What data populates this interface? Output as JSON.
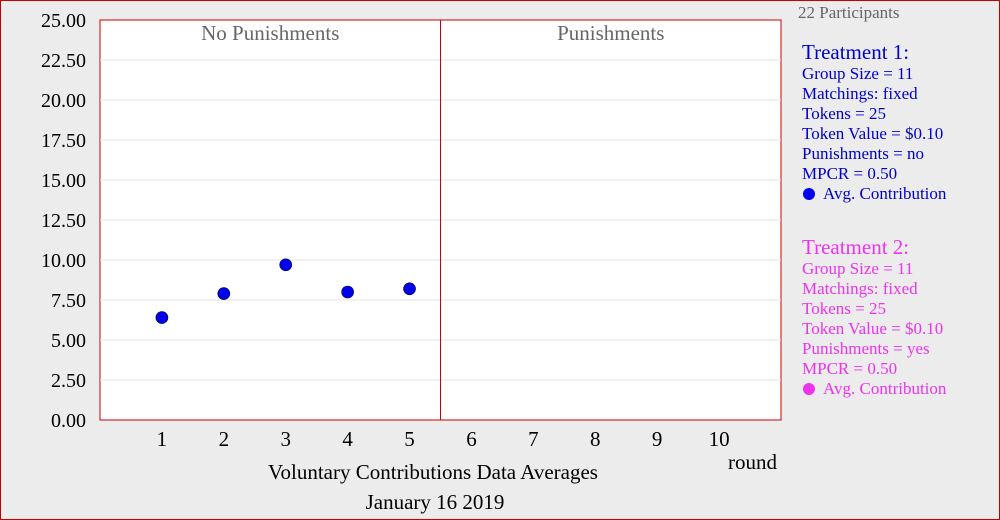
{
  "chart_data": {
    "type": "scatter",
    "title": "Voluntary Contributions Data Averages",
    "subtitle": "January 16  2019",
    "xlabel": "round",
    "xlim": [
      0,
      11
    ],
    "ylim": [
      0,
      25
    ],
    "x_ticks": [
      "1",
      "2",
      "3",
      "4",
      "5",
      "6",
      "7",
      "8",
      "9",
      "10"
    ],
    "y_ticks": [
      "0.00",
      "2.50",
      "5.00",
      "7.50",
      "10.00",
      "12.50",
      "15.00",
      "17.50",
      "20.00",
      "22.50",
      "25.00"
    ],
    "grid": true,
    "divider_x": 5.5,
    "panels": [
      "No Punishments",
      "Punishments"
    ],
    "series": [
      {
        "name": "Avg. Contribution",
        "color": "#0000ee",
        "x": [
          1,
          2,
          3,
          4,
          5
        ],
        "y": [
          6.4,
          7.9,
          9.7,
          8.0,
          8.2
        ]
      },
      {
        "name": "Avg. Contribution",
        "color": "#ee33ee",
        "x": [],
        "y": []
      }
    ]
  },
  "sidebar": {
    "participants": "22 Participants",
    "treatment1": {
      "title": "Treatment 1:",
      "color": "#0000cc",
      "lines": [
        "Group Size = 11",
        "Matchings: fixed",
        "Tokens = 25",
        "Token Value = $0.10",
        "Punishments = no",
        "MPCR = 0.50"
      ],
      "legend": "Avg. Contribution",
      "dot_color": "#0000ee"
    },
    "treatment2": {
      "title": "Treatment 2:",
      "color": "#ee33ee",
      "lines": [
        "Group Size = 11",
        "Matchings: fixed",
        "Tokens = 25",
        "Token Value = $0.10",
        "Punishments = yes",
        "MPCR = 0.50"
      ],
      "legend": "Avg. Contribution",
      "dot_color": "#ee33ee"
    }
  }
}
